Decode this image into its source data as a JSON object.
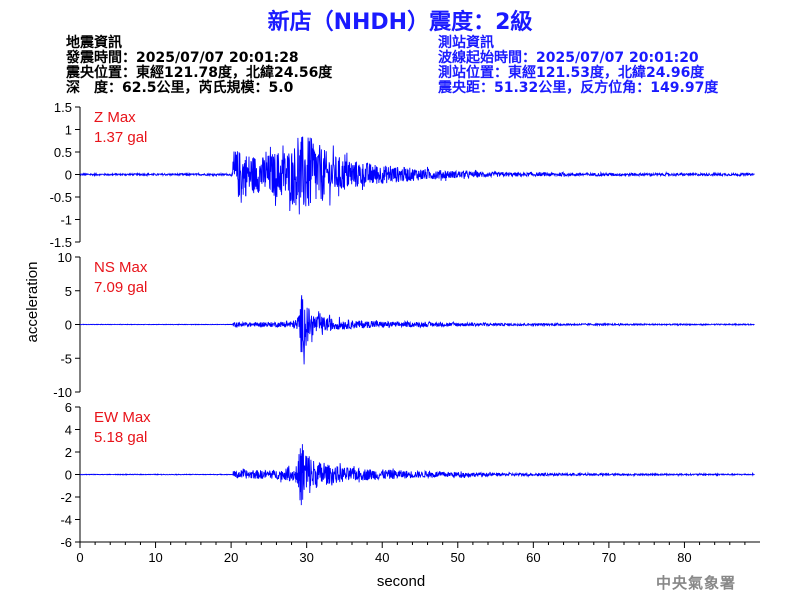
{
  "title": "新店（NHDH）震度：2級",
  "event_info": {
    "heading": "地震資訊",
    "origin_time": "發震時間：2025/07/07 20:01:28",
    "epicenter": "震央位置：東經121.78度，北緯24.56度",
    "depth_magnitude": "深　度：62.5公里，芮氏規模：5.0"
  },
  "station_info": {
    "heading": "測站資訊",
    "wave_start": "波線起始時間：2025/07/07 20:01:20",
    "location": "測站位置：東經121.53度，北緯24.96度",
    "distance": "震央距：51.32公里，反方位角：149.97度"
  },
  "footer": "中央氣象署",
  "colors": {
    "title": "#1a1aff",
    "trace": "#0000ff",
    "max_label": "#e8131a",
    "axis": "#000000"
  },
  "chart_data": {
    "type": "line",
    "xlabel": "second",
    "ylabel": "acceleration",
    "xlim": [
      0,
      90
    ],
    "xticks": [
      0,
      10,
      20,
      30,
      40,
      50,
      60,
      70,
      80
    ],
    "grid": false,
    "panels": [
      {
        "name": "Z",
        "max_label": "Z Max",
        "max_value": "1.37 gal",
        "ylim": [
          -1.5,
          1.5
        ],
        "yticks": [
          1.5,
          1,
          0.5,
          0,
          -0.5,
          -1,
          -1.5
        ],
        "ytick_labels": [
          "1.5",
          "1",
          "0.5",
          "0",
          "-0.5",
          "-1",
          "-1.5"
        ],
        "envelope": [
          [
            0,
            0.03
          ],
          [
            20.2,
            0.03
          ],
          [
            20.3,
            0.9
          ],
          [
            22,
            0.75
          ],
          [
            24,
            0.6
          ],
          [
            26,
            0.8
          ],
          [
            28,
            0.9
          ],
          [
            29.5,
            1.37
          ],
          [
            31,
            1.2
          ],
          [
            33,
            0.7
          ],
          [
            36,
            0.5
          ],
          [
            40,
            0.32
          ],
          [
            45,
            0.2
          ],
          [
            50,
            0.12
          ],
          [
            55,
            0.08
          ],
          [
            60,
            0.06
          ],
          [
            70,
            0.05
          ],
          [
            80,
            0.04
          ],
          [
            90,
            0.04
          ]
        ]
      },
      {
        "name": "NS",
        "max_label": "NS Max",
        "max_value": "7.09 gal",
        "ylim": [
          -10,
          10
        ],
        "yticks": [
          10,
          5,
          0,
          -5,
          -10
        ],
        "ytick_labels": [
          "10",
          "5",
          "0",
          "-5",
          "-10"
        ],
        "envelope": [
          [
            0,
            0.05
          ],
          [
            20.2,
            0.05
          ],
          [
            20.3,
            0.5
          ],
          [
            24,
            0.5
          ],
          [
            27,
            0.6
          ],
          [
            28.5,
            1.0
          ],
          [
            29,
            3.0
          ],
          [
            29.3,
            7.09
          ],
          [
            29.8,
            5.5
          ],
          [
            30.5,
            3.0
          ],
          [
            31.5,
            2.0
          ],
          [
            34,
            1.2
          ],
          [
            38,
            0.8
          ],
          [
            42,
            0.6
          ],
          [
            48,
            0.45
          ],
          [
            55,
            0.3
          ],
          [
            65,
            0.2
          ],
          [
            75,
            0.15
          ],
          [
            90,
            0.1
          ]
        ]
      },
      {
        "name": "EW",
        "max_label": "EW Max",
        "max_value": "5.18 gal",
        "ylim": [
          -6,
          6
        ],
        "yticks": [
          6,
          4,
          2,
          0,
          -2,
          -4,
          -6
        ],
        "ytick_labels": [
          "6",
          "4",
          "2",
          "0",
          "-2",
          "-4",
          "-6"
        ],
        "envelope": [
          [
            0,
            0.04
          ],
          [
            20.2,
            0.04
          ],
          [
            20.3,
            0.5
          ],
          [
            23,
            0.6
          ],
          [
            26,
            0.6
          ],
          [
            28.5,
            1.0
          ],
          [
            29,
            3.0
          ],
          [
            29.4,
            5.18
          ],
          [
            30,
            3.5
          ],
          [
            31,
            2.0
          ],
          [
            33,
            1.3
          ],
          [
            36,
            0.9
          ],
          [
            40,
            0.7
          ],
          [
            45,
            0.45
          ],
          [
            50,
            0.35
          ],
          [
            55,
            0.2
          ],
          [
            65,
            0.15
          ],
          [
            75,
            0.1
          ],
          [
            90,
            0.08
          ]
        ]
      }
    ]
  }
}
